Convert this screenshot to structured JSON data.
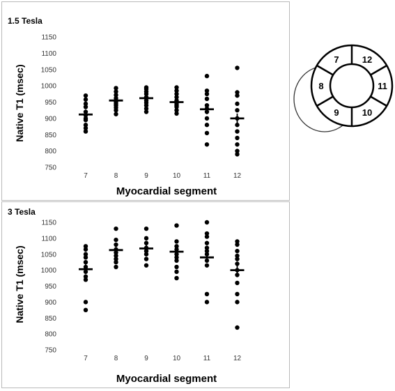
{
  "chart_data": [
    {
      "type": "scatter",
      "panel_label": "1.5 Tesla",
      "xlabel": "Myocardial segment",
      "ylabel": "Native T1 (msec)",
      "categories": [
        "7",
        "8",
        "9",
        "10",
        "11",
        "12"
      ],
      "ylim": [
        750,
        1150
      ],
      "yticks": [
        "750",
        "800",
        "850",
        "900",
        "950",
        "1000",
        "1050",
        "1100",
        "1150"
      ],
      "grid": false,
      "points": [
        [
          970,
          958,
          945,
          935,
          920,
          910,
          900,
          895,
          880,
          870,
          860
        ],
        [
          993,
          982,
          972,
          962,
          955,
          950,
          945,
          940,
          933,
          925,
          913
        ],
        [
          995,
          990,
          982,
          975,
          965,
          955,
          948,
          940,
          930,
          920
        ],
        [
          995,
          985,
          975,
          965,
          955,
          945,
          940,
          935,
          925,
          915
        ],
        [
          1030,
          985,
          975,
          960,
          940,
          930,
          920,
          900,
          880,
          855,
          820
        ],
        [
          1055,
          980,
          970,
          945,
          925,
          900,
          880,
          860,
          840,
          820,
          800,
          790
        ]
      ],
      "means": [
        912,
        955,
        962,
        950,
        928,
        900
      ]
    },
    {
      "type": "scatter",
      "panel_label": "3 Tesla",
      "xlabel": "Myocardial segment",
      "ylabel": "Native T1 (msec)",
      "categories": [
        "7",
        "8",
        "9",
        "10",
        "11",
        "12"
      ],
      "ylim": [
        750,
        1150
      ],
      "yticks": [
        "750",
        "800",
        "850",
        "900",
        "950",
        "1000",
        "1050",
        "1100",
        "1150"
      ],
      "grid": false,
      "points": [
        [
          1075,
          1065,
          1050,
          1040,
          1025,
          1010,
          995,
          980,
          970,
          900,
          875
        ],
        [
          1130,
          1095,
          1080,
          1065,
          1055,
          1045,
          1035,
          1025,
          1010
        ],
        [
          1130,
          1100,
          1085,
          1070,
          1060,
          1050,
          1035,
          1015
        ],
        [
          1140,
          1090,
          1075,
          1065,
          1050,
          1040,
          1030,
          1010,
          995,
          975
        ],
        [
          1150,
          1115,
          1105,
          1085,
          1070,
          1060,
          1050,
          1030,
          1015,
          925,
          900
        ],
        [
          1090,
          1080,
          1060,
          1045,
          1035,
          1020,
          1000,
          985,
          960,
          925,
          900,
          820
        ]
      ],
      "means": [
        1003,
        1063,
        1068,
        1058,
        1040,
        1000
      ]
    }
  ],
  "segment_diagram": {
    "segments": [
      "7",
      "12",
      "11",
      "10",
      "9",
      "8"
    ]
  }
}
